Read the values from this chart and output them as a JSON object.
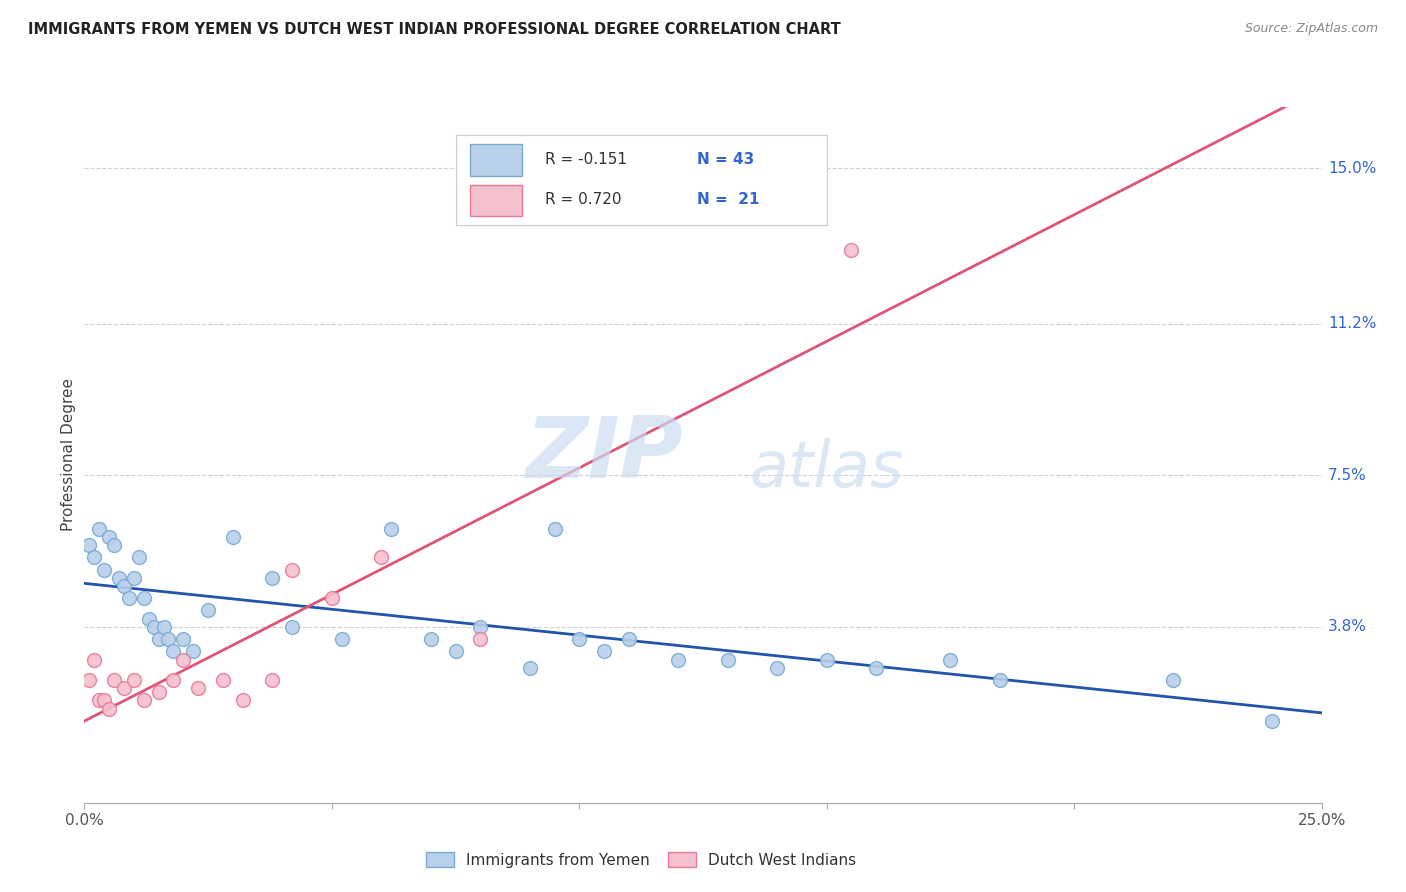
{
  "title": "IMMIGRANTS FROM YEMEN VS DUTCH WEST INDIAN PROFESSIONAL DEGREE CORRELATION CHART",
  "source": "Source: ZipAtlas.com",
  "ylabel": "Professional Degree",
  "xlim": [
    0.0,
    0.25
  ],
  "ylim": [
    -0.005,
    0.165
  ],
  "ytick_right_labels": [
    "15.0%",
    "11.2%",
    "7.5%",
    "3.8%"
  ],
  "ytick_right_values": [
    0.15,
    0.112,
    0.075,
    0.038
  ],
  "watermark_zip": "ZIP",
  "watermark_atlas": "atlas",
  "series1_label": "Immigrants from Yemen",
  "series2_label": "Dutch West Indians",
  "series1_color": "#b8d0ea",
  "series1_edge_color": "#7aaad0",
  "series2_color": "#f5c0ce",
  "series2_edge_color": "#e87898",
  "trendline1_color": "#2255aa",
  "trendline2_color": "#dd5577",
  "background_color": "#ffffff",
  "grid_color": "#cccccc",
  "title_color": "#222222",
  "legend_r1_text": "R = -0.151",
  "legend_n1_text": "N = 43",
  "legend_r2_text": "R = 0.720",
  "legend_n2_text": "N =  21",
  "rn_color": "#3366cc",
  "series1_x": [
    0.001,
    0.002,
    0.003,
    0.004,
    0.005,
    0.006,
    0.007,
    0.008,
    0.009,
    0.01,
    0.011,
    0.012,
    0.013,
    0.014,
    0.015,
    0.016,
    0.017,
    0.018,
    0.02,
    0.022,
    0.025,
    0.03,
    0.038,
    0.042,
    0.052,
    0.062,
    0.07,
    0.075,
    0.08,
    0.09,
    0.095,
    0.1,
    0.105,
    0.11,
    0.12,
    0.13,
    0.14,
    0.15,
    0.16,
    0.175,
    0.185,
    0.22,
    0.24
  ],
  "series1_y": [
    0.058,
    0.055,
    0.062,
    0.052,
    0.06,
    0.058,
    0.05,
    0.048,
    0.045,
    0.05,
    0.055,
    0.045,
    0.04,
    0.038,
    0.035,
    0.038,
    0.035,
    0.032,
    0.035,
    0.032,
    0.042,
    0.06,
    0.05,
    0.038,
    0.035,
    0.062,
    0.035,
    0.032,
    0.038,
    0.028,
    0.062,
    0.035,
    0.032,
    0.035,
    0.03,
    0.03,
    0.028,
    0.03,
    0.028,
    0.03,
    0.025,
    0.025,
    0.015
  ],
  "series2_x": [
    0.001,
    0.002,
    0.003,
    0.004,
    0.005,
    0.006,
    0.008,
    0.01,
    0.012,
    0.015,
    0.018,
    0.02,
    0.023,
    0.028,
    0.032,
    0.038,
    0.042,
    0.05,
    0.06,
    0.08,
    0.155
  ],
  "series2_y": [
    0.025,
    0.03,
    0.02,
    0.02,
    0.018,
    0.025,
    0.023,
    0.025,
    0.02,
    0.022,
    0.025,
    0.03,
    0.023,
    0.025,
    0.02,
    0.025,
    0.052,
    0.045,
    0.055,
    0.035,
    0.13
  ]
}
